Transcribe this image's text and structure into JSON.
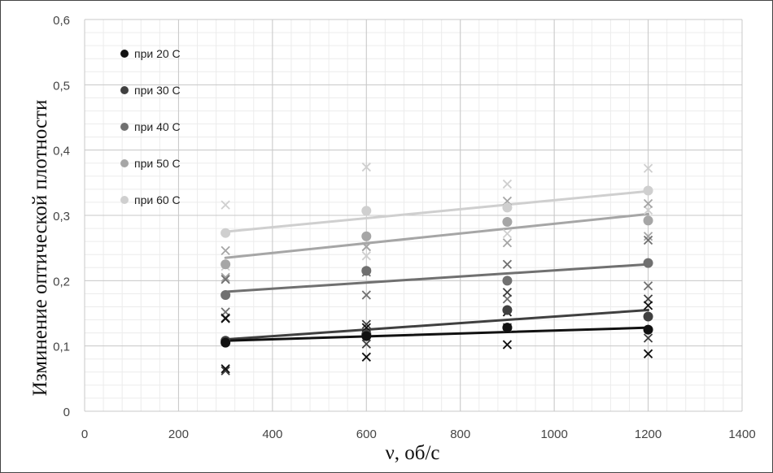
{
  "chart_data": {
    "type": "scatter",
    "xlabel": "ν, об/с",
    "ylabel": "Изминение оптической плотности",
    "xlim": [
      0,
      1400
    ],
    "ylim": [
      0,
      0.6
    ],
    "x_ticks": [
      0,
      200,
      400,
      600,
      800,
      1000,
      1200,
      1400
    ],
    "y_ticks": [
      0,
      0.1,
      0.2,
      0.3,
      0.4,
      0.5,
      0.6
    ],
    "y_tick_labels": [
      "0",
      "0,1",
      "0,2",
      "0,3",
      "0,4",
      "0,5",
      "0,6"
    ],
    "grid": true,
    "legend_position": "top-left",
    "x": [
      300,
      600,
      900,
      1200
    ],
    "series": [
      {
        "name": "при 20 С",
        "color": "#111111",
        "values": [
          0.105,
          0.115,
          0.128,
          0.125
        ],
        "error_marks": [
          [
            0.065,
            0.142
          ],
          [
            0.083,
            0.128
          ],
          [
            0.102,
            0.152
          ],
          [
            0.088,
            0.162
          ]
        ],
        "trend": [
          0.108,
          0.128
        ]
      },
      {
        "name": "при 30 С",
        "color": "#404040",
        "values": [
          0.108,
          0.118,
          0.155,
          0.145
        ],
        "error_marks": [
          [
            0.062,
            0.143
          ],
          [
            0.103,
            0.133
          ],
          [
            0.128,
            0.182
          ],
          [
            0.112,
            0.172
          ]
        ],
        "trend": [
          0.11,
          0.155
        ]
      },
      {
        "name": "при 40 С",
        "color": "#707070",
        "values": [
          0.178,
          0.215,
          0.2,
          0.227
        ],
        "error_marks": [
          [
            0.152,
            0.202
          ],
          [
            0.178,
            0.213
          ],
          [
            0.172,
            0.225
          ],
          [
            0.192,
            0.262
          ]
        ],
        "trend": [
          0.183,
          0.225
        ]
      },
      {
        "name": "при 50 С",
        "color": "#a6a6a6",
        "values": [
          0.225,
          0.268,
          0.29,
          0.292
        ],
        "error_marks": [
          [
            0.205,
            0.246
          ],
          [
            0.252,
            0.252
          ],
          [
            0.258,
            0.322
          ],
          [
            0.268,
            0.318
          ]
        ],
        "trend": [
          0.235,
          0.302
        ]
      },
      {
        "name": "при 60 С",
        "color": "#cfcfcf",
        "values": [
          0.273,
          0.307,
          0.312,
          0.338
        ],
        "error_marks": [
          [
            0.222,
            0.316
          ],
          [
            0.238,
            0.374
          ],
          [
            0.272,
            0.348
          ],
          [
            0.308,
            0.372
          ]
        ],
        "trend": [
          0.275,
          0.337
        ]
      }
    ]
  }
}
